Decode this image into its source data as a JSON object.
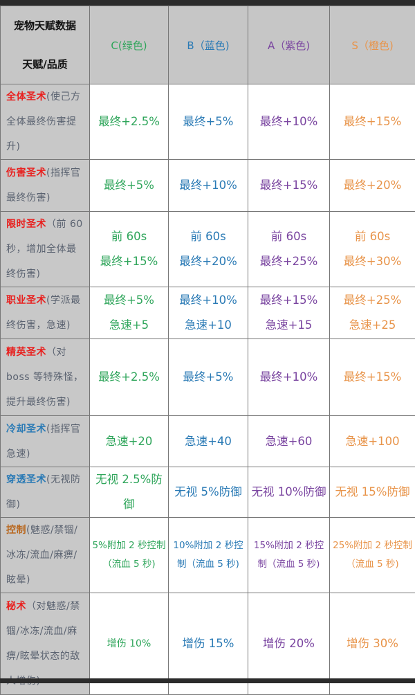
{
  "header": {
    "corner_top": "宠物天赋数据",
    "corner_bottom": "天赋/品质",
    "grades": [
      "C(绿色)",
      "B（蓝色)",
      "A（紫色)",
      "S（橙色)"
    ]
  },
  "colors": {
    "grades": [
      "#2ea55a",
      "#2a7ab5",
      "#7a45a0",
      "#e8944a"
    ],
    "name_red": "#e8201e",
    "name_blue": "#2a7ab5",
    "name_brown": "#b8671e",
    "desc": "#5a6270"
  },
  "rows": [
    {
      "name": "全体圣术",
      "name_color": "#e8201e",
      "desc": "(使己方全体最终伤害提升)",
      "cells": [
        [
          "最终+2.5%"
        ],
        [
          "最终+5%"
        ],
        [
          "最终+10%"
        ],
        [
          "最终+15%"
        ]
      ]
    },
    {
      "name": "伤害圣术",
      "name_color": "#e8201e",
      "desc": "(指挥官最终伤害)",
      "cells": [
        [
          "最终+5%"
        ],
        [
          "最终+10%"
        ],
        [
          "最终+15%"
        ],
        [
          "最终+20%"
        ]
      ]
    },
    {
      "name": "限时圣术",
      "name_color": "#e8201e",
      "desc": "（前 60 秒，增加全体最终伤害)",
      "cells": [
        [
          "前 60s",
          "最终+15%"
        ],
        [
          "前 60s",
          "最终+20%"
        ],
        [
          "前 60s",
          "最终+25%"
        ],
        [
          "前 60s",
          "最终+30%"
        ]
      ]
    },
    {
      "name": "职业圣术",
      "name_color": "#e8201e",
      "desc": "(学派最终伤害，急速)",
      "cells": [
        [
          "最终+5%",
          "急速+5"
        ],
        [
          "最终+10%",
          "急速+10"
        ],
        [
          "最终+15%",
          "急速+15"
        ],
        [
          "最终+25%",
          "急速+25"
        ]
      ]
    },
    {
      "name": "精英圣术",
      "name_color": "#e8201e",
      "desc": "（对 boss 等特殊怪，提升最终伤害)",
      "cells": [
        [
          "最终+2.5%"
        ],
        [
          "最终+5%"
        ],
        [
          "最终+10%"
        ],
        [
          "最终+15%"
        ]
      ]
    },
    {
      "name": "冷却圣术",
      "name_color": "#2a7ab5",
      "desc": "(指挥官急速)",
      "cells": [
        [
          "急速+20"
        ],
        [
          "急速+40"
        ],
        [
          "急速+60"
        ],
        [
          "急速+100"
        ]
      ]
    },
    {
      "name": "穿透圣术",
      "name_color": "#2a7ab5",
      "desc": "(无视防御)",
      "cells": [
        [
          "无视 2.5%防御"
        ],
        [
          "无视 5%防御"
        ],
        [
          "无视 10%防御"
        ],
        [
          "无视 15%防御"
        ]
      ]
    },
    {
      "name": "控制",
      "name_color": "#b8671e",
      "desc": "(魅惑/禁锢/冰冻/流血/麻痹/眩晕)",
      "small": true,
      "cells": [
        [
          "5%附加 2 秒控制（流血 5 秒)"
        ],
        [
          "10%附加 2 秒控制（流血 5 秒)"
        ],
        [
          "15%附加 2 秒控制（流血 5 秒)"
        ],
        [
          "25%附加 2 秒控制（流血 5 秒)"
        ]
      ]
    },
    {
      "name": "秘术",
      "name_color": "#e8201e",
      "desc": "（对魅惑/禁锢/冰冻/流血/麻痹/眩晕状态的敌人增伤)",
      "cells": [
        [
          "增伤 10%"
        ],
        [
          "增伤 15%"
        ],
        [
          "增伤 20%"
        ],
        [
          "增伤 30%"
        ]
      ]
    }
  ]
}
